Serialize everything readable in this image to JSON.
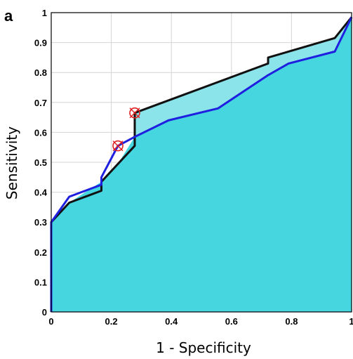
{
  "chart_data": {
    "type": "area",
    "panel_label": "a",
    "title": "",
    "xlabel": "1 - Specificity",
    "ylabel": "Sensitivity",
    "xlim": [
      0,
      1
    ],
    "ylim": [
      0,
      1
    ],
    "x_ticks": [
      "0",
      "0.2",
      "0.4",
      "0.6",
      "0.8",
      "1"
    ],
    "y_ticks": [
      "0",
      "0.1",
      "0.2",
      "0.3",
      "0.4",
      "0.5",
      "0.6",
      "0.7",
      "0.8",
      "0.9",
      "1"
    ],
    "grid": true,
    "colors": {
      "fill_main": "#46d6df",
      "fill_gap": "#8ae4ea",
      "curve_black": "#111111",
      "curve_blue": "#1f1fe0",
      "marker": "#e02020"
    },
    "series": [
      {
        "color": "#111111",
        "x": [
          0,
          0,
          0.06,
          0.167,
          0.167,
          0.278,
          0.278,
          0.722,
          0.722,
          0.944,
          1
        ],
        "y": [
          0,
          0.3,
          0.365,
          0.405,
          0.435,
          0.555,
          0.665,
          0.83,
          0.85,
          0.915,
          0.985
        ]
      },
      {
        "color": "#1f1fe0",
        "x": [
          0,
          0,
          0.06,
          0.167,
          0.167,
          0.222,
          0.278,
          0.39,
          0.555,
          0.72,
          0.79,
          0.944,
          1
        ],
        "y": [
          0,
          0.3,
          0.385,
          0.425,
          0.45,
          0.555,
          0.585,
          0.64,
          0.68,
          0.79,
          0.83,
          0.87,
          0.985
        ]
      }
    ],
    "markers": [
      {
        "x": 0.222,
        "y": 0.555
      },
      {
        "x": 0.278,
        "y": 0.665
      }
    ]
  }
}
